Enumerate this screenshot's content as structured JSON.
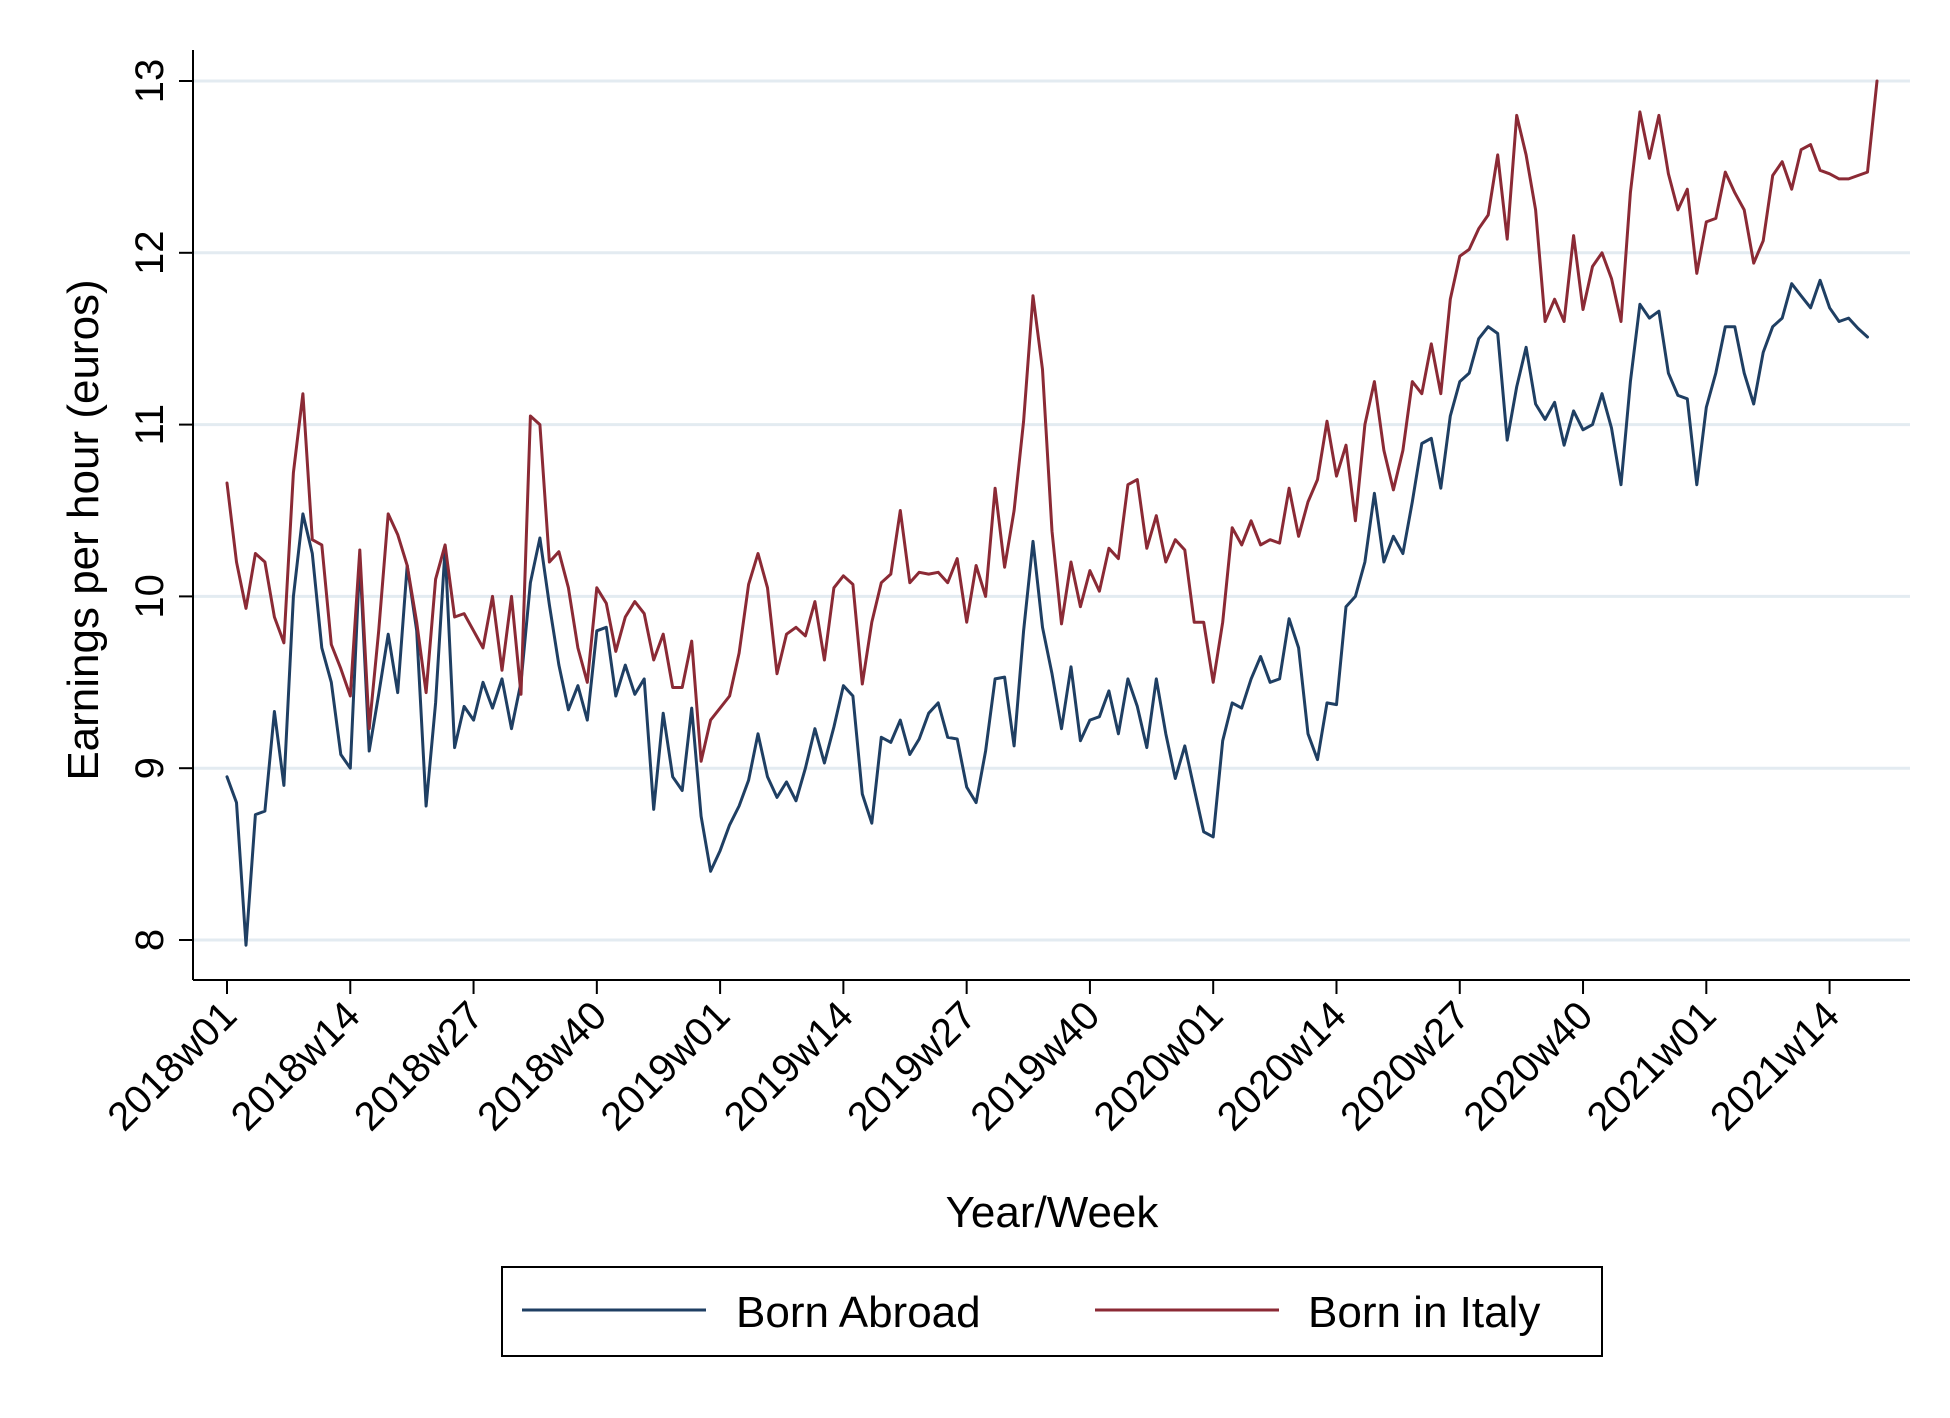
{
  "chart_data": {
    "type": "line",
    "title": "",
    "xlabel": "Year/Week",
    "ylabel": "Earnings per hour (euros)",
    "ylim": [
      7.8,
      13.2
    ],
    "yticks": [
      8,
      9,
      10,
      11,
      12,
      13
    ],
    "grid": true,
    "legend_position": "bottom",
    "x_tick_labels": [
      "2018w01",
      "2018w14",
      "2018w27",
      "2018w40",
      "2019w01",
      "2019w14",
      "2019w27",
      "2019w40",
      "2020w01",
      "2020w14",
      "2020w27",
      "2020w40",
      "2021w01",
      "2021w14"
    ],
    "x_tick_weeks": [
      1,
      14,
      27,
      40,
      53,
      66,
      79,
      92,
      105,
      118,
      131,
      144,
      157,
      170
    ],
    "x_range_weeks": [
      1,
      175
    ],
    "series": [
      {
        "name": "Born Abroad",
        "color": "#1f3f63",
        "values": [
          8.95,
          8.8,
          7.97,
          8.73,
          8.75,
          9.33,
          8.9,
          10.0,
          10.48,
          10.25,
          9.7,
          9.5,
          9.08,
          9.0,
          10.22,
          9.1,
          9.43,
          9.78,
          9.44,
          10.18,
          9.8,
          8.78,
          9.38,
          10.28,
          9.12,
          9.36,
          9.28,
          9.5,
          9.35,
          9.52,
          9.23,
          9.5,
          10.08,
          10.34,
          9.95,
          9.6,
          9.34,
          9.48,
          9.28,
          9.8,
          9.82,
          9.42,
          9.6,
          9.43,
          9.52,
          8.76,
          9.32,
          8.95,
          8.87,
          9.35,
          8.72,
          8.4,
          8.52,
          8.67,
          8.78,
          8.93,
          9.2,
          8.95,
          8.83,
          8.92,
          8.81,
          9.0,
          9.23,
          9.03,
          9.24,
          9.48,
          9.42,
          8.85,
          8.68,
          9.18,
          9.15,
          9.28,
          9.08,
          9.17,
          9.32,
          9.38,
          9.18,
          9.17,
          8.89,
          8.8,
          9.1,
          9.52,
          9.53,
          9.13,
          9.8,
          10.32,
          9.82,
          9.55,
          9.23,
          9.59,
          9.16,
          9.28,
          9.3,
          9.45,
          9.2,
          9.52,
          9.36,
          9.12,
          9.52,
          9.2,
          8.94,
          9.13,
          8.88,
          8.63,
          8.6,
          9.16,
          9.38,
          9.35,
          9.52,
          9.65,
          9.5,
          9.52,
          9.87,
          9.7,
          9.2,
          9.05,
          9.38,
          9.37,
          9.94,
          10.0,
          10.2,
          10.6,
          10.2,
          10.35,
          10.25,
          10.55,
          10.89,
          10.92,
          10.63,
          11.05,
          11.25,
          11.3,
          11.5,
          11.57,
          11.53,
          10.91,
          11.22,
          11.45,
          11.12,
          11.03,
          11.13,
          10.88,
          11.08,
          10.97,
          11.0,
          11.18,
          10.98,
          10.65,
          11.25,
          11.7,
          11.62,
          11.66,
          11.3,
          11.17,
          11.15,
          10.65,
          11.1,
          11.3,
          11.57,
          11.57,
          11.3,
          11.12,
          11.42,
          11.57,
          11.62,
          11.82,
          11.75,
          11.68,
          11.84,
          11.68,
          11.6,
          11.62,
          11.56,
          11.51
        ]
      },
      {
        "name": "Born in Italy",
        "color": "#8b2a35",
        "values": [
          10.66,
          10.2,
          9.93,
          10.25,
          10.2,
          9.88,
          9.73,
          10.72,
          11.18,
          10.33,
          10.3,
          9.72,
          9.58,
          9.42,
          10.27,
          9.23,
          9.8,
          10.48,
          10.36,
          10.18,
          9.85,
          9.44,
          10.1,
          10.3,
          9.88,
          9.9,
          9.8,
          9.7,
          10.0,
          9.57,
          10.0,
          9.43,
          11.05,
          11.0,
          10.2,
          10.26,
          10.05,
          9.7,
          9.5,
          10.05,
          9.96,
          9.68,
          9.88,
          9.97,
          9.9,
          9.63,
          9.78,
          9.47,
          9.47,
          9.74,
          9.04,
          9.28,
          9.35,
          9.42,
          9.67,
          10.07,
          10.25,
          10.05,
          9.55,
          9.78,
          9.82,
          9.77,
          9.97,
          9.63,
          10.05,
          10.12,
          10.07,
          9.49,
          9.85,
          10.08,
          10.13,
          10.5,
          10.08,
          10.14,
          10.13,
          10.14,
          10.08,
          10.22,
          9.85,
          10.18,
          10.0,
          10.63,
          10.17,
          10.5,
          11.02,
          11.75,
          11.32,
          10.38,
          9.84,
          10.2,
          9.94,
          10.15,
          10.03,
          10.28,
          10.22,
          10.65,
          10.68,
          10.28,
          10.47,
          10.2,
          10.33,
          10.27,
          9.85,
          9.85,
          9.5,
          9.85,
          10.4,
          10.3,
          10.44,
          10.3,
          10.33,
          10.31,
          10.63,
          10.35,
          10.55,
          10.68,
          11.02,
          10.7,
          10.88,
          10.44,
          11.0,
          11.25,
          10.85,
          10.62,
          10.85,
          11.25,
          11.18,
          11.47,
          11.18,
          11.73,
          11.98,
          12.02,
          12.14,
          12.22,
          12.57,
          12.08,
          12.8,
          12.57,
          12.25,
          11.6,
          11.73,
          11.6,
          12.1,
          11.67,
          11.92,
          12.0,
          11.85,
          11.6,
          12.35,
          12.82,
          12.55,
          12.8,
          12.46,
          12.25,
          12.37,
          11.88,
          12.18,
          12.2,
          12.47,
          12.35,
          12.25,
          11.94,
          12.07,
          12.45,
          12.53,
          12.37,
          12.6,
          12.63,
          12.48,
          12.46,
          12.43,
          12.43,
          12.45,
          12.47,
          13.0
        ]
      }
    ]
  }
}
